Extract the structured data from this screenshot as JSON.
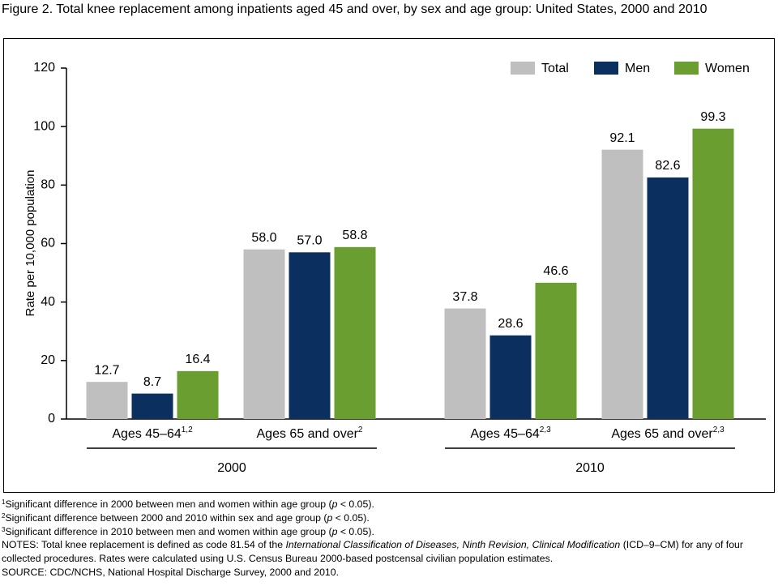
{
  "chart_data": {
    "type": "bar",
    "title": "Figure 2. Total knee replacement among inpatients aged 45 and over, by sex and age group: United States, 2000 and 2010",
    "y_label": "Rate per 10,000 population",
    "category_groups": [
      {
        "name": "2000",
        "categories": [
          "Ages 45–64",
          "Ages 65 and over"
        ],
        "notes": [
          "1,2",
          "2"
        ]
      },
      {
        "name": "2010",
        "categories": [
          "Ages 45–64",
          "Ages 65 and over"
        ],
        "notes": [
          "2,3",
          "2,3"
        ]
      }
    ],
    "series": [
      {
        "name": "Total",
        "color": "#bfbfbf",
        "values": [
          12.7,
          58.0,
          37.8,
          92.1
        ],
        "value_labels": [
          "12.7",
          "58.0",
          "37.8",
          "92.1"
        ]
      },
      {
        "name": "Men",
        "color": "#0b2f5e",
        "values": [
          8.7,
          57.0,
          28.6,
          82.6
        ],
        "value_labels": [
          "8.7",
          "57.0",
          "28.6",
          "82.6"
        ]
      },
      {
        "name": "Women",
        "color": "#6b9e30",
        "values": [
          16.4,
          58.8,
          46.6,
          99.3
        ],
        "value_labels": [
          "16.4",
          "58.8",
          "46.6",
          "99.3"
        ]
      }
    ],
    "ylim": [
      0,
      120
    ],
    "yticks": [
      0,
      20,
      40,
      60,
      80,
      100,
      120
    ],
    "grid": false,
    "legend": "top-right"
  },
  "footnotes": [
    [
      {
        "text": "1",
        "style": "sup"
      },
      {
        "text": "Significant difference in 2000 between men and women within age group ("
      },
      {
        "text": "p",
        "style": "italic"
      },
      {
        "text": " < 0.05)."
      }
    ],
    [
      {
        "text": "2",
        "style": "sup"
      },
      {
        "text": "Significant difference between 2000 and 2010 within sex and age group ("
      },
      {
        "text": "p",
        "style": "italic"
      },
      {
        "text": " < 0.05)."
      }
    ],
    [
      {
        "text": "3",
        "style": "sup"
      },
      {
        "text": "Significant difference in 2010 between men and women within age group ("
      },
      {
        "text": "p",
        "style": "italic"
      },
      {
        "text": " < 0.05)."
      }
    ],
    [
      {
        "text": "NOTES: Total knee replacement is defined as code 81.54 of the "
      },
      {
        "text": "International Classification of Diseases, Ninth Revision, Clinical Modification",
        "style": "italic"
      },
      {
        "text": " (ICD–9–CM) for any of four collected procedures. Rates were calculated using U.S. Census Bureau 2000-based postcensal civilian population estimates."
      }
    ],
    [
      {
        "text": "SOURCE: CDC/NCHS, National Hospital Discharge Survey, 2000 and 2010."
      }
    ]
  ]
}
